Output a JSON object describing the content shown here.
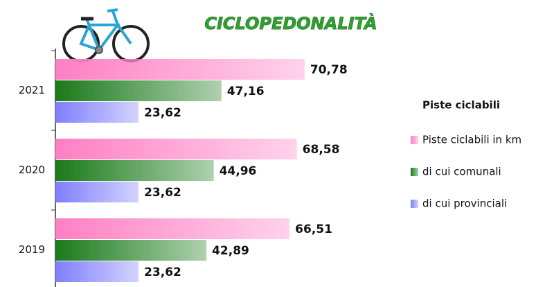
{
  "chart_data": {
    "type": "bar",
    "orientation": "horizontal",
    "title": "CICLOPEDONALITÀ",
    "legend_title": "Piste ciclabili",
    "legend": "right",
    "categories": [
      "2021",
      "2020",
      "2019"
    ],
    "xlim": [
      0,
      130
    ],
    "series": [
      {
        "name": "Piste ciclabili in km",
        "color": "#ff7fc4",
        "values": [
          70.78,
          68.58,
          66.51
        ],
        "value_labels": [
          "70,78",
          "68,58",
          "66,51"
        ]
      },
      {
        "name": "di cui comunali",
        "color": "#1a7a1a",
        "values": [
          47.16,
          44.96,
          42.89
        ],
        "value_labels": [
          "47,16",
          "44,96",
          "42,89"
        ]
      },
      {
        "name": "di cui provinciali",
        "color": "#7f7fff",
        "values": [
          23.62,
          23.62,
          23.62
        ],
        "value_labels": [
          "23,62",
          "23,62",
          "23,62"
        ]
      }
    ]
  }
}
